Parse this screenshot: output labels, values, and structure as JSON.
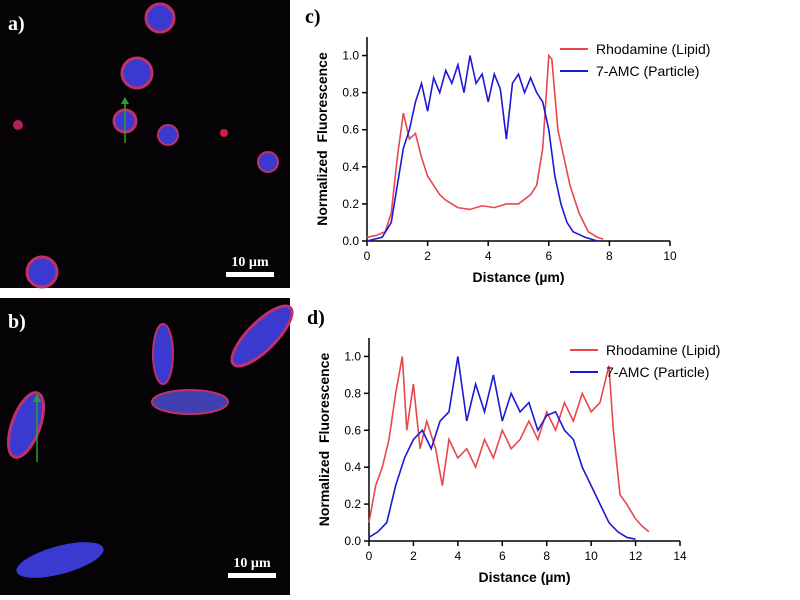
{
  "images": [
    {
      "label": "a)",
      "scale_bar": "10 µm"
    },
    {
      "label": "b)",
      "scale_bar": "10 µm"
    }
  ],
  "chart_data": [
    {
      "type": "line",
      "label": "c)",
      "xlabel": "Distance (µm)",
      "ylabel": "Normalized  Fluorescence",
      "xlim": [
        0,
        10
      ],
      "xticks": [
        0,
        2,
        4,
        6,
        8,
        10
      ],
      "ylim": [
        0,
        1.1
      ],
      "yticks": [
        {
          "value": 0,
          "label": "0.0"
        },
        0.2,
        0.4,
        0.6,
        0.8,
        {
          "value": 1,
          "label": "1.0"
        }
      ],
      "legend": "upper right",
      "grid": false,
      "series": [
        {
          "name": "Rhodamine (Lipid)",
          "color": "#e8474c",
          "x": [
            0,
            0.3,
            0.6,
            0.8,
            1.0,
            1.2,
            1.4,
            1.6,
            1.8,
            2.0,
            2.2,
            2.4,
            2.6,
            2.8,
            3.0,
            3.4,
            3.8,
            4.2,
            4.6,
            5.0,
            5.4,
            5.6,
            5.8,
            6.0,
            6.1,
            6.3,
            6.5,
            6.7,
            7.0,
            7.3,
            7.6,
            7.8
          ],
          "values": [
            0.02,
            0.03,
            0.05,
            0.15,
            0.45,
            0.69,
            0.55,
            0.58,
            0.45,
            0.35,
            0.3,
            0.25,
            0.22,
            0.2,
            0.18,
            0.17,
            0.19,
            0.18,
            0.2,
            0.2,
            0.25,
            0.3,
            0.5,
            1.0,
            0.98,
            0.6,
            0.45,
            0.3,
            0.15,
            0.05,
            0.02,
            0.01
          ]
        },
        {
          "name": "7-AMC (Particle)",
          "color": "#1a1ad6",
          "x": [
            0,
            0.5,
            0.8,
            1.0,
            1.2,
            1.4,
            1.6,
            1.8,
            2.0,
            2.2,
            2.4,
            2.6,
            2.8,
            3.0,
            3.2,
            3.4,
            3.6,
            3.8,
            4.0,
            4.2,
            4.4,
            4.6,
            4.8,
            5.0,
            5.2,
            5.4,
            5.6,
            5.8,
            6.0,
            6.2,
            6.4,
            6.6,
            6.8,
            7.2,
            7.6
          ],
          "values": [
            0.0,
            0.02,
            0.1,
            0.3,
            0.5,
            0.6,
            0.75,
            0.85,
            0.7,
            0.88,
            0.8,
            0.92,
            0.85,
            0.95,
            0.8,
            1.0,
            0.85,
            0.9,
            0.75,
            0.9,
            0.82,
            0.55,
            0.85,
            0.9,
            0.8,
            0.88,
            0.8,
            0.75,
            0.6,
            0.35,
            0.2,
            0.1,
            0.05,
            0.02,
            0.0
          ]
        }
      ]
    },
    {
      "type": "line",
      "label": "d)",
      "xlabel": "Distance (µm)",
      "ylabel": "Normalized  Fluorescence",
      "xlim": [
        0,
        14
      ],
      "xticks": [
        0,
        2,
        4,
        6,
        8,
        10,
        12,
        14
      ],
      "ylim": [
        0,
        1.1
      ],
      "yticks": [
        {
          "value": 0,
          "label": "0.0"
        },
        0.2,
        0.4,
        0.6,
        0.8,
        {
          "value": 1,
          "label": "1.0"
        }
      ],
      "legend": "upper right",
      "grid": false,
      "series": [
        {
          "name": "Rhodamine (Lipid)",
          "color": "#e8474c",
          "x": [
            0,
            0.3,
            0.6,
            0.9,
            1.2,
            1.5,
            1.7,
            2.0,
            2.3,
            2.6,
            3.0,
            3.3,
            3.6,
            4.0,
            4.4,
            4.8,
            5.2,
            5.6,
            6.0,
            6.4,
            6.8,
            7.2,
            7.6,
            8.0,
            8.4,
            8.8,
            9.2,
            9.6,
            10.0,
            10.4,
            10.8,
            11.0,
            11.3,
            11.6,
            12.0,
            12.3,
            12.6
          ],
          "values": [
            0.1,
            0.3,
            0.4,
            0.55,
            0.8,
            1.0,
            0.6,
            0.85,
            0.5,
            0.65,
            0.5,
            0.3,
            0.55,
            0.45,
            0.5,
            0.4,
            0.55,
            0.45,
            0.6,
            0.5,
            0.55,
            0.65,
            0.55,
            0.7,
            0.6,
            0.75,
            0.65,
            0.8,
            0.7,
            0.75,
            0.95,
            0.6,
            0.25,
            0.2,
            0.12,
            0.08,
            0.05
          ]
        },
        {
          "name": "7-AMC (Particle)",
          "color": "#1a1ad6",
          "x": [
            0,
            0.4,
            0.8,
            1.2,
            1.6,
            2.0,
            2.4,
            2.8,
            3.2,
            3.6,
            4.0,
            4.4,
            4.8,
            5.2,
            5.6,
            6.0,
            6.4,
            6.8,
            7.2,
            7.6,
            8.0,
            8.4,
            8.8,
            9.2,
            9.6,
            10.0,
            10.4,
            10.8,
            11.2,
            11.6,
            12.0
          ],
          "values": [
            0.02,
            0.05,
            0.1,
            0.3,
            0.45,
            0.55,
            0.6,
            0.5,
            0.65,
            0.7,
            1.0,
            0.65,
            0.85,
            0.7,
            0.9,
            0.65,
            0.8,
            0.7,
            0.75,
            0.6,
            0.68,
            0.7,
            0.6,
            0.55,
            0.4,
            0.3,
            0.2,
            0.1,
            0.05,
            0.02,
            0.01
          ]
        }
      ]
    }
  ]
}
